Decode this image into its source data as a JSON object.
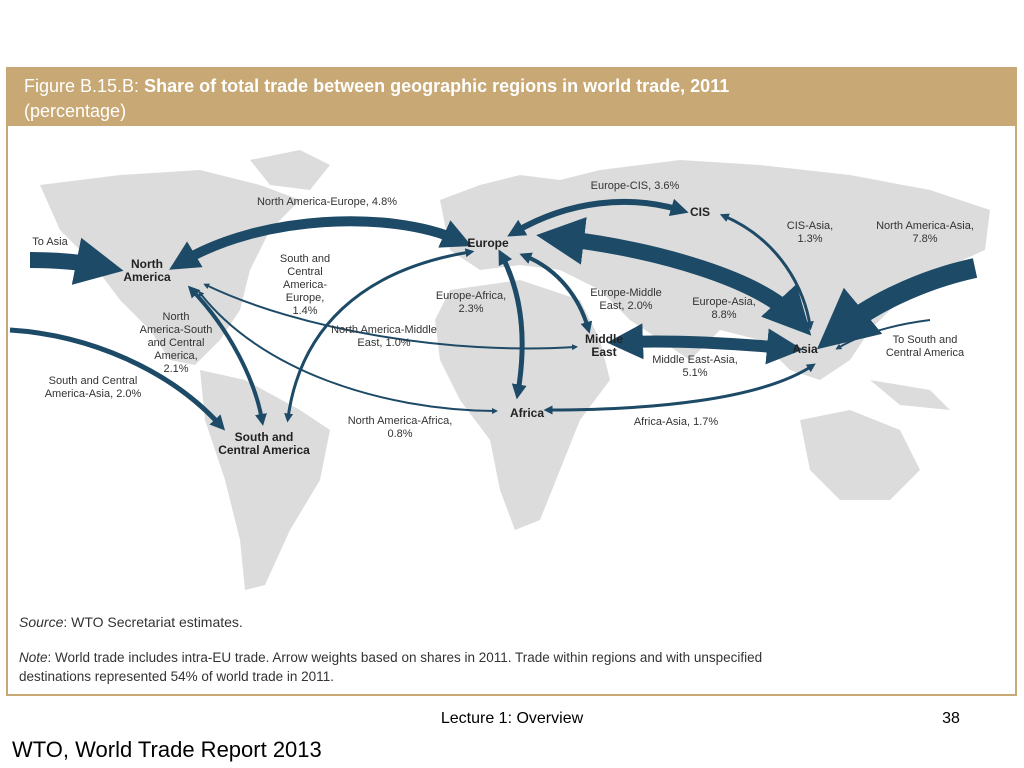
{
  "figure": {
    "title_prefix": "Figure B.15.B:",
    "title": "Share of total trade between geographic regions in world trade, 2011",
    "subtitle": "(percentage)",
    "regions": [
      {
        "lines": [
          "North",
          "America"
        ]
      },
      {
        "lines": [
          "Europe"
        ]
      },
      {
        "lines": [
          "CIS"
        ]
      },
      {
        "lines": [
          "Middle",
          "East"
        ]
      },
      {
        "lines": [
          "Asia"
        ]
      },
      {
        "lines": [
          "Africa"
        ]
      },
      {
        "lines": [
          "South and",
          "Central America"
        ]
      }
    ],
    "flows": [
      {
        "lines": [
          "North America-Europe, 4.8%"
        ]
      },
      {
        "lines": [
          "Europe-CIS, 3.6%"
        ]
      },
      {
        "lines": [
          "CIS-Asia,",
          "1.3%"
        ]
      },
      {
        "lines": [
          "North America-Asia,",
          "7.8%"
        ]
      },
      {
        "lines": [
          "To Asia"
        ]
      },
      {
        "lines": [
          "South and",
          "Central",
          "America-",
          "Europe,",
          "1.4%"
        ]
      },
      {
        "lines": [
          "Europe-Africa,",
          "2.3%"
        ]
      },
      {
        "lines": [
          "Europe-Middle",
          "East, 2.0%"
        ]
      },
      {
        "lines": [
          "Europe-Asia,",
          "8.8%"
        ]
      },
      {
        "lines": [
          "To South and",
          "Central America"
        ]
      },
      {
        "lines": [
          "North",
          "America-South",
          "and Central",
          "America,",
          "2.1%"
        ]
      },
      {
        "lines": [
          "North America-Middle",
          "East, 1.0%"
        ]
      },
      {
        "lines": [
          "Middle East-Asia,",
          "5.1%"
        ]
      },
      {
        "lines": [
          "South and Central",
          "America-Asia, 2.0%"
        ]
      },
      {
        "lines": [
          "North America-Africa,",
          "0.8%"
        ]
      },
      {
        "lines": [
          "Africa-Asia, 1.7%"
        ]
      }
    ],
    "source": {
      "label": "Source",
      "text": ": WTO Secretariat estimates."
    },
    "note": {
      "label": "Note",
      "lines": [
        ": World trade includes intra-EU trade.  Arrow weights based on shares in 2011. Trade within regions and with unspecified",
        "destinations represented 54% of world trade in 2011."
      ]
    }
  },
  "footer": {
    "lecture": "Lecture 1:  Overview",
    "page": "38",
    "credit": "WTO, World Trade Report 2013"
  }
}
